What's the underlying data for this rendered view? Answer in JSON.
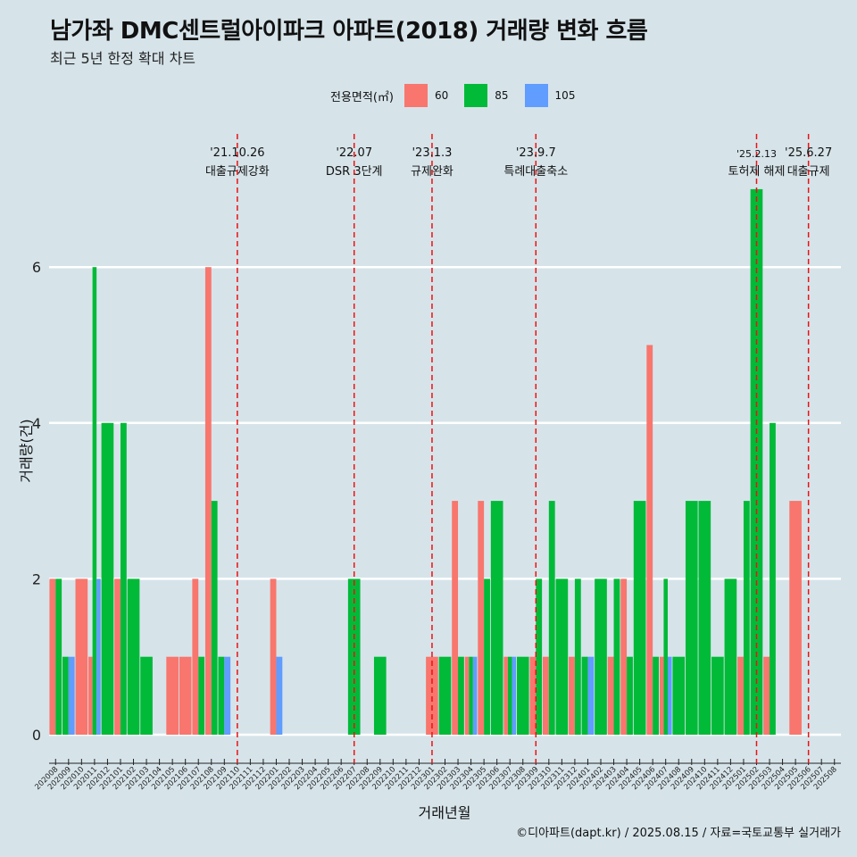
{
  "title": "남가좌 DMC센트럴아이파크 아파트(2018) 거래량 변화 흐름",
  "subtitle": "최근 5년 한정 확대 차트",
  "caption": "©디아파트(dapt.kr) / 2025.08.15 / 자료=국토교통부 실거래가",
  "chart_data": {
    "type": "bar",
    "xlabel": "거래년월",
    "ylabel": "거래량(건)",
    "legend": {
      "title": "전용면적(㎡)",
      "position": "top"
    },
    "colors": {
      "60": "#f8766d",
      "85": "#00ba38",
      "105": "#619cff"
    },
    "ylim": [
      0,
      7.4
    ],
    "yticks": [
      0,
      2,
      4,
      6
    ],
    "grid": true,
    "categories": [
      "202008",
      "202009",
      "202010",
      "202011",
      "202012",
      "202101",
      "202102",
      "202103",
      "202104",
      "202105",
      "202106",
      "202107",
      "202108",
      "202109",
      "202110",
      "202111",
      "202112",
      "202201",
      "202202",
      "202203",
      "202204",
      "202205",
      "202206",
      "202207",
      "202208",
      "202209",
      "202210",
      "202211",
      "202212",
      "202301",
      "202302",
      "202303",
      "202304",
      "202305",
      "202306",
      "202307",
      "202308",
      "202309",
      "202310",
      "202311",
      "202312",
      "202401",
      "202402",
      "202403",
      "202404",
      "202405",
      "202406",
      "202407",
      "202408",
      "202409",
      "202410",
      "202411",
      "202412",
      "202501",
      "202502",
      "202503",
      "202504",
      "202505",
      "202506",
      "202507",
      "202508"
    ],
    "series": [
      {
        "name": "60",
        "values": [
          2,
          0,
          2,
          1,
          0,
          2,
          0,
          0,
          0,
          1,
          1,
          2,
          6,
          0,
          0,
          0,
          0,
          2,
          0,
          0,
          0,
          0,
          0,
          0,
          0,
          0,
          0,
          0,
          0,
          1,
          0,
          3,
          1,
          3,
          0,
          1,
          0,
          1,
          1,
          0,
          1,
          0,
          0,
          1,
          2,
          0,
          5,
          1,
          0,
          0,
          0,
          0,
          0,
          1,
          0,
          1,
          0,
          3,
          0,
          0,
          0
        ]
      },
      {
        "name": "85",
        "values": [
          2,
          1,
          0,
          6,
          4,
          4,
          2,
          1,
          0,
          0,
          0,
          1,
          3,
          1,
          0,
          0,
          0,
          0,
          0,
          0,
          0,
          0,
          0,
          2,
          0,
          1,
          0,
          0,
          0,
          0,
          1,
          1,
          1,
          2,
          3,
          1,
          1,
          2,
          3,
          2,
          2,
          1,
          2,
          2,
          1,
          3,
          1,
          2,
          1,
          3,
          3,
          1,
          2,
          3,
          7,
          4,
          0,
          0,
          0,
          0,
          0
        ]
      },
      {
        "name": "105",
        "values": [
          0,
          1,
          0,
          2,
          0,
          0,
          0,
          0,
          0,
          0,
          0,
          0,
          0,
          1,
          0,
          0,
          0,
          1,
          0,
          0,
          0,
          0,
          0,
          0,
          0,
          0,
          0,
          0,
          0,
          0,
          0,
          0,
          1,
          0,
          0,
          1,
          0,
          0,
          0,
          0,
          0,
          1,
          0,
          0,
          0,
          0,
          0,
          1,
          0,
          0,
          0,
          0,
          0,
          0,
          0,
          0,
          0,
          0,
          0,
          0,
          0
        ]
      }
    ],
    "annotations": [
      {
        "date": "'21.10.26",
        "label": "대출규제강화",
        "category": "202110"
      },
      {
        "date": "'22.07",
        "label": "DSR 3단계",
        "category": "202207"
      },
      {
        "date": "'23.1.3",
        "label": "규제완화",
        "category": "202301"
      },
      {
        "date": "'23.9.7",
        "label": "특례대출축소",
        "category": "202309"
      },
      {
        "date": "'25.2.13",
        "label": "토허제 해제",
        "category": "202502"
      },
      {
        "date": "'25.6.27",
        "label": "대출규제",
        "category": "202506"
      }
    ]
  }
}
